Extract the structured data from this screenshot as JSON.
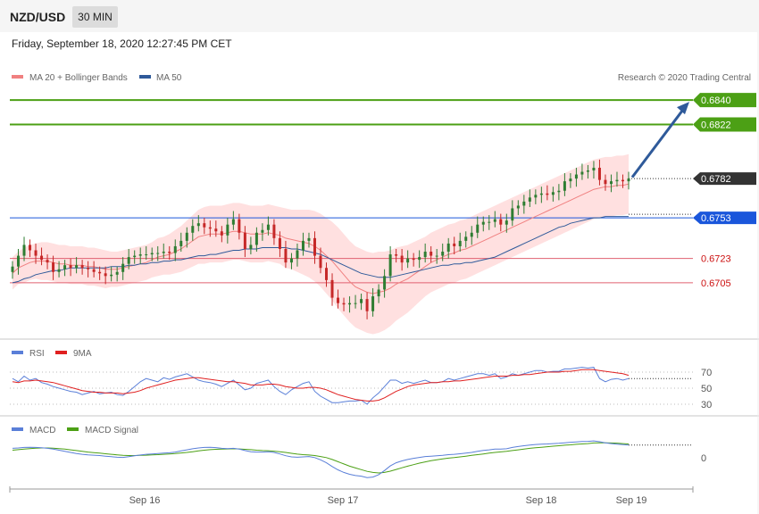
{
  "header": {
    "symbol": "NZD/USD",
    "timeframe": "30 MIN"
  },
  "datetime": "Friday, September 18, 2020 12:27:45 PM CET",
  "credit": "Research © 2020 Trading Central",
  "colors": {
    "bollinger_band": "#ffd6d6",
    "ma20": "#f08080",
    "ma50": "#2f5a9a",
    "resistance": "#4ca015",
    "pivot": "#1a56db",
    "support": "#e06070",
    "candle_up": "#2e7d32",
    "candle_down": "#c62828",
    "arrow": "#2f5a9a",
    "rsi": "#5a7fd8",
    "rsi_ma": "#e02020",
    "macd": "#5a7fd8",
    "macd_signal": "#4ca015"
  },
  "chart_data": [
    {
      "type": "line",
      "panel": "price",
      "legend": [
        {
          "name": "MA 20 + Bollinger Bands",
          "color": "#f08080"
        },
        {
          "name": "MA 50",
          "color": "#2f5a9a"
        }
      ],
      "x_labels": [
        "Sep 16",
        "Sep 17",
        "Sep 18",
        "Sep 19"
      ],
      "ylim": [
        0.667,
        0.6848
      ],
      "levels": [
        {
          "value": 0.684,
          "label": "0.6840",
          "kind": "resistance"
        },
        {
          "value": 0.6822,
          "label": "0.6822",
          "kind": "resistance"
        },
        {
          "value": 0.6782,
          "label": "0.6782",
          "kind": "current"
        },
        {
          "value": 0.6753,
          "label": "0.6753",
          "kind": "pivot"
        },
        {
          "value": 0.6723,
          "label": "0.6723",
          "kind": "support"
        },
        {
          "value": 0.6705,
          "label": "0.6705",
          "kind": "support"
        }
      ],
      "close": [
        0.6717,
        0.6725,
        0.6733,
        0.6729,
        0.6725,
        0.6722,
        0.672,
        0.6713,
        0.6715,
        0.6718,
        0.6716,
        0.6718,
        0.6716,
        0.6715,
        0.6713,
        0.6712,
        0.671,
        0.6711,
        0.6713,
        0.6719,
        0.6724,
        0.6725,
        0.6726,
        0.6726,
        0.6727,
        0.6727,
        0.6728,
        0.6727,
        0.6732,
        0.6736,
        0.6742,
        0.6747,
        0.6749,
        0.6746,
        0.6745,
        0.6743,
        0.674,
        0.6748,
        0.6752,
        0.6742,
        0.673,
        0.6733,
        0.6742,
        0.6744,
        0.6748,
        0.6738,
        0.673,
        0.672,
        0.6723,
        0.6729,
        0.6736,
        0.6738,
        0.6725,
        0.6716,
        0.6707,
        0.6694,
        0.669,
        0.6689,
        0.669,
        0.669,
        0.6693,
        0.6684,
        0.6695,
        0.67,
        0.671,
        0.6726,
        0.6725,
        0.672,
        0.6723,
        0.6722,
        0.6724,
        0.6728,
        0.6725,
        0.6725,
        0.6728,
        0.6734,
        0.6732,
        0.6736,
        0.6739,
        0.6742,
        0.6748,
        0.675,
        0.675,
        0.6752,
        0.6748,
        0.6751,
        0.676,
        0.6762,
        0.6765,
        0.6768,
        0.677,
        0.6771,
        0.677,
        0.6772,
        0.6773,
        0.678,
        0.6782,
        0.6785,
        0.6787,
        0.6788,
        0.679,
        0.6781,
        0.6778,
        0.678,
        0.6781,
        0.678,
        0.6782
      ],
      "ma20": [
        0.6712,
        0.6716,
        0.6718,
        0.672,
        0.6721,
        0.6721,
        0.6721,
        0.672,
        0.6719,
        0.6719,
        0.6718,
        0.6718,
        0.6718,
        0.6717,
        0.6717,
        0.6716,
        0.6715,
        0.6715,
        0.6715,
        0.6716,
        0.6717,
        0.6718,
        0.6719,
        0.672,
        0.6722,
        0.6724,
        0.6725,
        0.6726,
        0.6728,
        0.673,
        0.6733,
        0.6736,
        0.6739,
        0.674,
        0.6741,
        0.6741,
        0.6741,
        0.6742,
        0.6743,
        0.6743,
        0.6742,
        0.6741,
        0.6741,
        0.6741,
        0.6742,
        0.6741,
        0.674,
        0.6738,
        0.6737,
        0.6736,
        0.6735,
        0.6734,
        0.6732,
        0.6729,
        0.6725,
        0.6721,
        0.6716,
        0.6711,
        0.6706,
        0.6702,
        0.67,
        0.6698,
        0.6697,
        0.6698,
        0.6699,
        0.6701,
        0.6704,
        0.6706,
        0.6708,
        0.6711,
        0.6714,
        0.6717,
        0.672,
        0.6722,
        0.6724,
        0.6726,
        0.6727,
        0.6729,
        0.673,
        0.6732,
        0.6734,
        0.6736,
        0.6738,
        0.674,
        0.6742,
        0.6744,
        0.6746,
        0.6748,
        0.675,
        0.6752,
        0.6754,
        0.6756,
        0.6758,
        0.676,
        0.6762,
        0.6764,
        0.6766,
        0.6768,
        0.677,
        0.6772,
        0.6774,
        0.6775,
        0.6776,
        0.6776,
        0.6777,
        0.6777,
        0.6778
      ],
      "ma50": [
        0.6705,
        0.6706,
        0.6708,
        0.6709,
        0.6711,
        0.6712,
        0.6713,
        0.6714,
        0.6714,
        0.6715,
        0.6716,
        0.6716,
        0.6716,
        0.6716,
        0.6716,
        0.6716,
        0.6716,
        0.6717,
        0.6717,
        0.6717,
        0.6718,
        0.6718,
        0.6719,
        0.6719,
        0.672,
        0.672,
        0.6721,
        0.6721,
        0.6722,
        0.6722,
        0.6723,
        0.6724,
        0.6725,
        0.6725,
        0.6726,
        0.6726,
        0.6727,
        0.6728,
        0.6729,
        0.6729,
        0.673,
        0.673,
        0.673,
        0.6731,
        0.6731,
        0.6731,
        0.6731,
        0.6731,
        0.673,
        0.673,
        0.6729,
        0.6728,
        0.6727,
        0.6726,
        0.6724,
        0.6722,
        0.672,
        0.6718,
        0.6716,
        0.6714,
        0.6712,
        0.6711,
        0.671,
        0.6709,
        0.6709,
        0.6709,
        0.671,
        0.6711,
        0.6712,
        0.6713,
        0.6714,
        0.6715,
        0.6716,
        0.6717,
        0.6718,
        0.6718,
        0.6719,
        0.6719,
        0.672,
        0.672,
        0.6721,
        0.6722,
        0.6723,
        0.6724,
        0.6726,
        0.6728,
        0.673,
        0.6732,
        0.6734,
        0.6736,
        0.6738,
        0.674,
        0.6742,
        0.6744,
        0.6746,
        0.6747,
        0.6749,
        0.675,
        0.6751,
        0.6752,
        0.6753,
        0.6753,
        0.6754,
        0.6754,
        0.6754,
        0.6754,
        0.6754
      ],
      "bb_width": [
        0.0012,
        0.0012,
        0.0013,
        0.0013,
        0.0013,
        0.0014,
        0.0014,
        0.0014,
        0.0014,
        0.0014,
        0.0014,
        0.0014,
        0.0014,
        0.0014,
        0.0014,
        0.0014,
        0.0014,
        0.0013,
        0.0013,
        0.0013,
        0.0013,
        0.0013,
        0.0013,
        0.0013,
        0.0013,
        0.0014,
        0.0014,
        0.0015,
        0.0016,
        0.0017,
        0.0018,
        0.0019,
        0.002,
        0.0021,
        0.0021,
        0.0021,
        0.0021,
        0.0021,
        0.0021,
        0.0021,
        0.0021,
        0.0021,
        0.0021,
        0.0021,
        0.0021,
        0.0021,
        0.0021,
        0.0022,
        0.0022,
        0.0023,
        0.0024,
        0.0025,
        0.0026,
        0.0027,
        0.0028,
        0.0029,
        0.003,
        0.003,
        0.003,
        0.003,
        0.003,
        0.003,
        0.003,
        0.003,
        0.0029,
        0.0028,
        0.0027,
        0.0026,
        0.0025,
        0.0024,
        0.0023,
        0.0022,
        0.0022,
        0.0022,
        0.0022,
        0.0022,
        0.0022,
        0.0022,
        0.0022,
        0.0022,
        0.0022,
        0.0022,
        0.0022,
        0.0022,
        0.0022,
        0.0022,
        0.0022,
        0.0022,
        0.0022,
        0.0022,
        0.0022,
        0.0022,
        0.0022,
        0.0022,
        0.0022,
        0.0022,
        0.0022,
        0.0022,
        0.0022,
        0.0022,
        0.0022,
        0.0022,
        0.0022,
        0.0022,
        0.0022,
        0.0022,
        0.0022
      ],
      "projection": {
        "from": 0.6783,
        "to": 0.684
      }
    },
    {
      "type": "line",
      "panel": "rsi",
      "legend": [
        {
          "name": "RSI",
          "color": "#5a7fd8"
        },
        {
          "name": "9MA",
          "color": "#e02020"
        }
      ],
      "ylim": [
        20,
        80
      ],
      "levels": [
        70,
        50,
        30
      ],
      "tick_labels": [
        "70",
        "50",
        "30"
      ],
      "rsi": [
        62,
        58,
        65,
        60,
        62,
        57,
        55,
        52,
        50,
        48,
        46,
        45,
        42,
        44,
        46,
        43,
        44,
        45,
        42,
        41,
        46,
        52,
        58,
        62,
        60,
        58,
        63,
        61,
        64,
        66,
        68,
        64,
        60,
        58,
        57,
        55,
        52,
        56,
        60,
        54,
        48,
        50,
        56,
        58,
        60,
        52,
        46,
        42,
        48,
        52,
        56,
        58,
        46,
        40,
        36,
        32,
        32,
        33,
        34,
        34,
        35,
        30,
        38,
        44,
        52,
        60,
        60,
        56,
        58,
        56,
        58,
        60,
        57,
        57,
        58,
        62,
        60,
        62,
        64,
        66,
        68,
        68,
        66,
        68,
        62,
        64,
        68,
        66,
        68,
        70,
        72,
        72,
        70,
        71,
        71,
        74,
        74,
        75,
        76,
        75,
        76,
        62,
        58,
        61,
        62,
        60,
        62
      ],
      "rsi_ma": [
        58,
        57,
        59,
        59,
        60,
        59,
        58,
        57,
        55,
        53,
        51,
        49,
        47,
        46,
        45,
        45,
        44,
        44,
        44,
        43,
        44,
        45,
        47,
        50,
        52,
        54,
        56,
        58,
        60,
        61,
        62,
        63,
        63,
        62,
        61,
        60,
        59,
        58,
        58,
        57,
        56,
        54,
        54,
        54,
        55,
        55,
        54,
        52,
        51,
        50,
        50,
        51,
        51,
        50,
        48,
        45,
        42,
        40,
        38,
        36,
        35,
        34,
        34,
        35,
        38,
        42,
        46,
        49,
        52,
        54,
        55,
        56,
        57,
        57,
        58,
        58,
        59,
        59,
        60,
        61,
        62,
        63,
        64,
        65,
        65,
        65,
        66,
        66,
        67,
        67,
        68,
        69,
        70,
        70,
        70,
        71,
        71,
        72,
        73,
        73,
        73,
        72,
        71,
        70,
        69,
        68,
        66
      ]
    },
    {
      "type": "line",
      "panel": "macd",
      "legend": [
        {
          "name": "MACD",
          "color": "#5a7fd8"
        },
        {
          "name": "MACD Signal",
          "color": "#4ca015"
        }
      ],
      "ylim": [
        -0.0016,
        0.0011
      ],
      "zero_label": "0",
      "macd": [
        0.0005,
        0.00052,
        0.00055,
        0.00056,
        0.00055,
        0.00053,
        0.0005,
        0.00046,
        0.0004,
        0.00034,
        0.00028,
        0.00022,
        0.00018,
        0.00015,
        0.00013,
        0.00011,
        8e-05,
        5e-05,
        2e-05,
        1e-05,
        5e-05,
        0.0001,
        0.00014,
        0.00018,
        0.0002,
        0.00022,
        0.00024,
        0.00026,
        0.0003,
        0.00036,
        0.00042,
        0.00048,
        0.00052,
        0.00055,
        0.00056,
        0.00054,
        0.0005,
        0.00049,
        0.0005,
        0.00046,
        0.00038,
        0.00032,
        0.0003,
        0.0003,
        0.00032,
        0.00028,
        0.0002,
        0.0001,
        4e-05,
        2e-05,
        4e-05,
        6e-05,
        0.0,
        -0.00012,
        -0.00028,
        -0.00048,
        -0.00066,
        -0.0008,
        -0.0009,
        -0.00097,
        -0.001,
        -0.00108,
        -0.00105,
        -0.00092,
        -0.0007,
        -0.00045,
        -0.00028,
        -0.00018,
        -0.0001,
        -4e-05,
        1e-05,
        6e-05,
        8e-05,
        0.0001,
        0.00012,
        0.00016,
        0.00018,
        0.00021,
        0.00024,
        0.00028,
        0.00034,
        0.00039,
        0.00042,
        0.00046,
        0.00046,
        0.00048,
        0.00055,
        0.0006,
        0.00064,
        0.00068,
        0.00071,
        0.00073,
        0.00074,
        0.00076,
        0.00077,
        0.0008,
        0.00083,
        0.00085,
        0.00087,
        0.00088,
        0.0009,
        0.00086,
        0.0008,
        0.00076,
        0.00073,
        0.0007,
        0.00068
      ],
      "macd_signal": [
        0.0004,
        0.00043,
        0.00046,
        0.00049,
        0.00051,
        0.00052,
        0.00052,
        0.00051,
        0.00049,
        0.00046,
        0.00042,
        0.00038,
        0.00034,
        0.0003,
        0.00027,
        0.00024,
        0.00021,
        0.00018,
        0.00015,
        0.00012,
        0.00011,
        0.00011,
        0.00012,
        0.00013,
        0.00015,
        0.00016,
        0.00018,
        0.0002,
        0.00022,
        0.00025,
        0.00028,
        0.00032,
        0.00036,
        0.0004,
        0.00043,
        0.00045,
        0.00046,
        0.00047,
        0.00048,
        0.00047,
        0.00045,
        0.00043,
        0.0004,
        0.00038,
        0.00037,
        0.00035,
        0.00032,
        0.00028,
        0.00023,
        0.00019,
        0.00016,
        0.00014,
        0.00011,
        6e-05,
        0.0,
        -0.0001,
        -0.00022,
        -0.00034,
        -0.00046,
        -0.00056,
        -0.00065,
        -0.00074,
        -0.0008,
        -0.00083,
        -0.0008,
        -0.00073,
        -0.00064,
        -0.00055,
        -0.00046,
        -0.00038,
        -0.0003,
        -0.00023,
        -0.00017,
        -0.00012,
        -7e-05,
        -3e-05,
        0.0,
        4e-05,
        8e-05,
        0.00012,
        0.00016,
        0.0002,
        0.00024,
        0.00028,
        0.00031,
        0.00034,
        0.00038,
        0.00042,
        0.00046,
        0.0005,
        0.00053,
        0.00056,
        0.00059,
        0.00062,
        0.00064,
        0.00067,
        0.00069,
        0.00072,
        0.00074,
        0.00076,
        0.00079,
        0.0008,
        0.0008,
        0.00079,
        0.00078,
        0.00076,
        0.00074
      ]
    }
  ]
}
